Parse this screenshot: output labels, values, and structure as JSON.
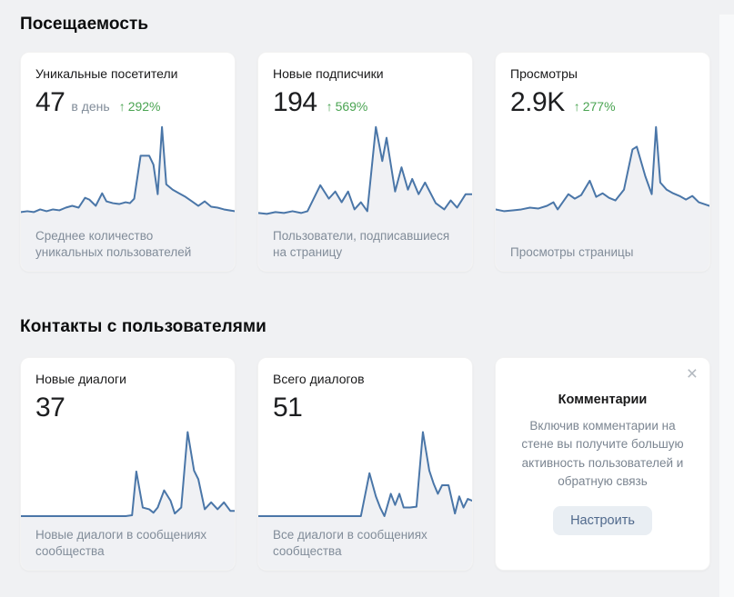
{
  "colors": {
    "accent_blue": "#4a76a8",
    "trend_green": "#4aa452",
    "chart_fill": "#f0f1f4",
    "text_secondary": "#818c99",
    "page_background": "#f0f1f3"
  },
  "sections": [
    {
      "title": "Посещаемость",
      "cards": [
        {
          "title": "Уникальные посетители",
          "value": "47",
          "unit": "в день",
          "trend_icon": "↑",
          "trend": "292%",
          "caption": "Среднее количество уникальных пользователей"
        },
        {
          "title": "Новые подписчики",
          "value": "194",
          "trend_icon": "↑",
          "trend": "569%",
          "caption": "Пользователи, подписавшиеся на страницу"
        },
        {
          "title": "Просмотры",
          "value": "2.9K",
          "trend_icon": "↑",
          "trend": "277%",
          "caption": "Просмотры страницы"
        }
      ]
    },
    {
      "title": "Контакты с пользователями",
      "cards": [
        {
          "title": "Новые диалоги",
          "value": "37",
          "caption": "Новые диалоги в сообщениях сообщества"
        },
        {
          "title": "Всего диалогов",
          "value": "51",
          "caption": "Все диалоги в сообщениях сообщества"
        }
      ],
      "promo": {
        "title": "Комментарии",
        "text": "Включив комментарии на стене вы получите большую активность пользователей и обратную связь",
        "button_label": "Настроить",
        "close_icon": "×"
      }
    }
  ],
  "chart_data": [
    {
      "type": "area",
      "title": "Уникальные посетители",
      "note": "sparkline without axes; values are relative heights 0-100 read from pixels",
      "ylim": [
        0,
        100
      ],
      "axes_visible": false,
      "x": [
        0,
        3,
        6,
        9,
        12,
        15,
        18,
        21,
        24,
        27,
        30,
        32,
        35,
        38,
        40,
        43,
        46,
        49,
        51,
        53,
        56,
        60,
        62,
        64,
        66,
        68,
        71,
        74,
        77,
        80,
        83,
        86,
        89,
        92,
        95,
        100
      ],
      "values": [
        5,
        6,
        5,
        8,
        6,
        8,
        7,
        10,
        12,
        10,
        21,
        19,
        12,
        26,
        17,
        15,
        14,
        16,
        15,
        20,
        68,
        68,
        58,
        25,
        100,
        36,
        30,
        26,
        22,
        17,
        12,
        17,
        11,
        10,
        8,
        6
      ]
    },
    {
      "type": "area",
      "title": "Новые подписчики",
      "note": "sparkline without axes; values are relative heights 0-100 read from pixels",
      "ylim": [
        0,
        100
      ],
      "axes_visible": false,
      "x": [
        0,
        4,
        8,
        12,
        16,
        20,
        23,
        29,
        33,
        36,
        39,
        42,
        45,
        48,
        51,
        55,
        58,
        60,
        64,
        67,
        70,
        72,
        75,
        78,
        83,
        87,
        90,
        93,
        97,
        100
      ],
      "values": [
        4,
        3,
        5,
        4,
        6,
        4,
        6,
        35,
        20,
        28,
        16,
        28,
        8,
        16,
        6,
        100,
        62,
        88,
        28,
        55,
        30,
        42,
        25,
        38,
        15,
        8,
        18,
        10,
        25,
        25
      ]
    },
    {
      "type": "area",
      "title": "Просмотры",
      "note": "sparkline without axes; values are relative heights 0-100 read from pixels",
      "ylim": [
        0,
        100
      ],
      "axes_visible": false,
      "x": [
        0,
        4,
        8,
        12,
        16,
        20,
        24,
        27,
        29,
        34,
        37,
        40,
        44,
        47,
        50,
        53,
        56,
        60,
        64,
        66,
        70,
        73,
        75,
        77,
        80,
        83,
        86,
        89,
        92,
        95,
        100
      ],
      "values": [
        8,
        6,
        7,
        8,
        10,
        9,
        12,
        16,
        8,
        25,
        20,
        24,
        40,
        22,
        26,
        21,
        18,
        30,
        75,
        78,
        45,
        25,
        100,
        38,
        30,
        26,
        23,
        19,
        23,
        16,
        12
      ]
    },
    {
      "type": "area",
      "title": "Новые диалоги",
      "note": "sparkline without axes; values are relative heights 0-100 read from pixels",
      "ylim": [
        0,
        100
      ],
      "axes_visible": false,
      "x": [
        0,
        10,
        20,
        30,
        40,
        49,
        52,
        54,
        57,
        60,
        62,
        64,
        67,
        70,
        72,
        75,
        78,
        81,
        83,
        86,
        89,
        92,
        95,
        98,
        100
      ],
      "values": [
        2,
        2,
        2,
        2,
        2,
        2,
        3,
        54,
        12,
        10,
        6,
        12,
        32,
        20,
        5,
        12,
        100,
        55,
        45,
        10,
        18,
        10,
        18,
        8,
        8
      ]
    },
    {
      "type": "area",
      "title": "Всего диалогов",
      "note": "sparkline without axes; values are relative heights 0-100 read from pixels",
      "ylim": [
        0,
        100
      ],
      "axes_visible": false,
      "x": [
        0,
        10,
        20,
        30,
        40,
        48,
        52,
        55,
        57,
        59,
        62,
        64,
        66,
        68,
        71,
        74,
        77,
        80,
        82,
        84,
        86,
        89,
        92,
        94,
        96,
        98,
        100
      ],
      "values": [
        2,
        2,
        2,
        2,
        2,
        2,
        52,
        25,
        12,
        2,
        28,
        15,
        28,
        12,
        12,
        13,
        100,
        55,
        40,
        28,
        38,
        38,
        5,
        25,
        12,
        22,
        20
      ]
    }
  ]
}
